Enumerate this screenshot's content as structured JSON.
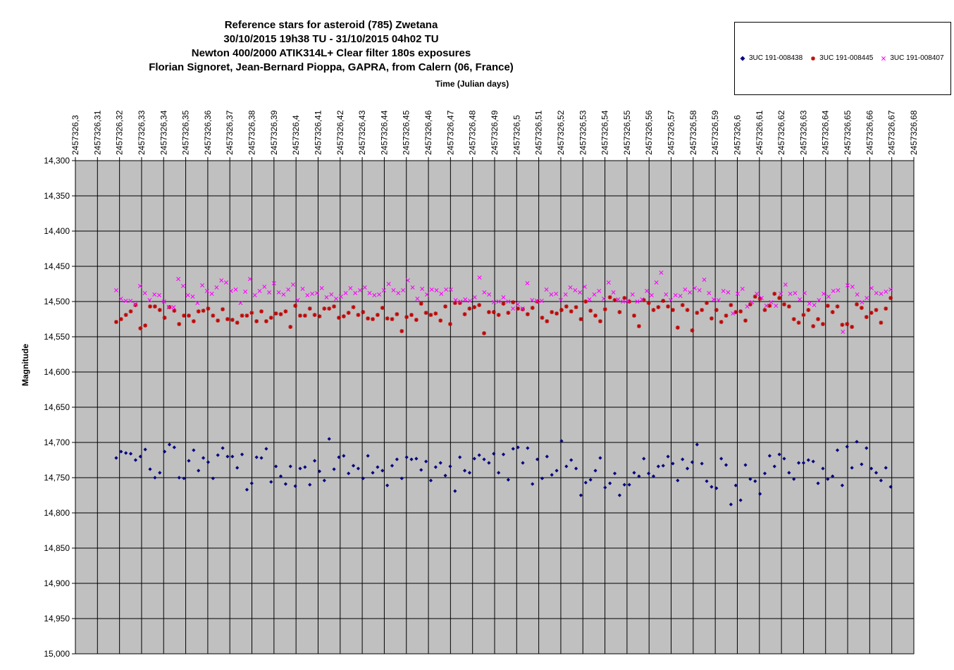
{
  "chart_data": {
    "type": "scatter",
    "title": [
      "Reference stars for asteroid (785) Zwetana",
      "30/10/2015 19h38 TU - 31/10/2015 04h02 TU",
      "Newton 400/2000 ATIK314L+ Clear filter 180s exposures",
      "Florian Signoret, Jean-Bernard Pioppa, GAPRA, from Calern (06, France)"
    ],
    "xlabel": "Time (Julian days)",
    "ylabel": "Magnitude",
    "xlim": [
      2457326.3,
      2457326.68
    ],
    "ylim": [
      14.3,
      15.0
    ],
    "y_inverted": true,
    "x_axis_position": "top",
    "grid": true,
    "plot_background": "#c0c0c0",
    "legend_position": "top-right",
    "x_ticks": [
      "2457326,3",
      "2457326,31",
      "2457326,32",
      "2457326,33",
      "2457326,34",
      "2457326,35",
      "2457326,36",
      "2457326,37",
      "2457326,38",
      "2457326,39",
      "2457326,4",
      "2457326,41",
      "2457326,42",
      "2457326,43",
      "2457326,44",
      "2457326,45",
      "2457326,46",
      "2457326,47",
      "2457326,48",
      "2457326,49",
      "2457326,5",
      "2457326,51",
      "2457326,52",
      "2457326,53",
      "2457326,54",
      "2457326,55",
      "2457326,56",
      "2457326,57",
      "2457326,58",
      "2457326,59",
      "2457326,6",
      "2457326,61",
      "2457326,62",
      "2457326,63",
      "2457326,64",
      "2457326,65",
      "2457326,66",
      "2457326,67",
      "2457326,68"
    ],
    "y_ticks": [
      "14,300",
      "14,350",
      "14,400",
      "14,450",
      "14,500",
      "14,550",
      "14,600",
      "14,650",
      "14,700",
      "14,750",
      "14,800",
      "14,850",
      "14,900",
      "14,950",
      "15,000"
    ],
    "series": [
      {
        "name": "3UC 191-008438",
        "color": "#000080",
        "marker": "diamond",
        "y": [
          14.722,
          14.713,
          14.715,
          14.716,
          14.725,
          14.72,
          14.71,
          14.738,
          14.75,
          14.743,
          14.713,
          14.703,
          14.707,
          14.75,
          14.751,
          14.726,
          14.711,
          14.74,
          14.722,
          14.728,
          14.751,
          14.718,
          14.708,
          14.72,
          14.72,
          14.736,
          14.717,
          14.767,
          14.758,
          14.721,
          14.722,
          14.709,
          14.756,
          14.734,
          14.748,
          14.759,
          14.734,
          14.762,
          14.737,
          14.735,
          14.76,
          14.726,
          14.741,
          14.754,
          14.695,
          14.738,
          14.721,
          14.719,
          14.744,
          14.733,
          14.737,
          14.751,
          14.719,
          14.743,
          14.735,
          14.74,
          14.761,
          14.733,
          14.724,
          14.751,
          14.721,
          14.724,
          14.723,
          14.739,
          14.727,
          14.754,
          14.735,
          14.729,
          14.747,
          14.734,
          14.769,
          14.721,
          14.74,
          14.743,
          14.723,
          14.718,
          14.724,
          14.729,
          14.716,
          14.743,
          14.717,
          14.753,
          14.709,
          14.707,
          14.729,
          14.708,
          14.759,
          14.724,
          14.751,
          14.72,
          14.746,
          14.74,
          14.698,
          14.734,
          14.725,
          14.737,
          14.775,
          14.757,
          14.753,
          14.74,
          14.722,
          14.764,
          14.758,
          14.744,
          14.775,
          14.76,
          14.76,
          14.743,
          14.748,
          14.723,
          14.744,
          14.748,
          14.734,
          14.733,
          14.72,
          14.73,
          14.754,
          14.724,
          14.737,
          14.728,
          14.703,
          14.73,
          14.755,
          14.763,
          14.765,
          14.723,
          14.732,
          14.788,
          14.761,
          14.782,
          14.732,
          14.752,
          14.755,
          14.773,
          14.744,
          14.719,
          14.734,
          14.717,
          14.723,
          14.743,
          14.752,
          14.729,
          14.729,
          14.725,
          14.727,
          14.758,
          14.737,
          14.752,
          14.748,
          14.711,
          14.761,
          14.706,
          14.736,
          14.699,
          14.731,
          14.708,
          14.737,
          14.743,
          14.754,
          14.736,
          14.763
        ]
      },
      {
        "name": "3UC 191-008445",
        "color": "#c00000",
        "marker": "star",
        "y": [
          14.529,
          14.525,
          14.519,
          14.514,
          14.505,
          14.538,
          14.534,
          14.507,
          14.507,
          14.512,
          14.523,
          14.508,
          14.513,
          14.532,
          14.52,
          14.52,
          14.528,
          14.514,
          14.513,
          14.51,
          14.52,
          14.527,
          14.511,
          14.525,
          14.526,
          14.53,
          14.52,
          14.52,
          14.516,
          14.528,
          14.514,
          14.528,
          14.523,
          14.517,
          14.518,
          14.514,
          14.536,
          14.506,
          14.52,
          14.52,
          14.51,
          14.519,
          14.521,
          14.51,
          14.51,
          14.507,
          14.523,
          14.521,
          14.516,
          14.508,
          14.519,
          14.515,
          14.524,
          14.525,
          14.519,
          14.509,
          14.524,
          14.525,
          14.518,
          14.542,
          14.522,
          14.519,
          14.526,
          14.503,
          14.516,
          14.519,
          14.517,
          14.527,
          14.507,
          14.532,
          14.502,
          14.502,
          14.518,
          14.51,
          14.508,
          14.505,
          14.545,
          14.515,
          14.515,
          14.519,
          14.503,
          14.516,
          14.501,
          14.51,
          14.511,
          14.518,
          14.509,
          14.5,
          14.523,
          14.528,
          14.515,
          14.517,
          14.512,
          14.507,
          14.514,
          14.508,
          14.525,
          14.5,
          14.513,
          14.52,
          14.528,
          14.511,
          14.494,
          14.498,
          14.515,
          14.495,
          14.5,
          14.52,
          14.535,
          14.498,
          14.502,
          14.512,
          14.508,
          14.499,
          14.507,
          14.512,
          14.537,
          14.505,
          14.512,
          14.541,
          14.516,
          14.512,
          14.502,
          14.524,
          14.512,
          14.529,
          14.52,
          14.505,
          14.515,
          14.514,
          14.527,
          14.504,
          14.493,
          14.496,
          14.512,
          14.506,
          14.489,
          14.495,
          14.504,
          14.507,
          14.525,
          14.53,
          14.519,
          14.512,
          14.535,
          14.525,
          14.532,
          14.506,
          14.515,
          14.507,
          14.533,
          14.532,
          14.536,
          14.504,
          14.509,
          14.522,
          14.516,
          14.512,
          14.53,
          14.51,
          14.495
        ]
      },
      {
        "name": "3UC 191-008407",
        "color": "#ff00ff",
        "marker": "x",
        "y": [
          14.484,
          14.496,
          14.499,
          14.499,
          14.504,
          14.478,
          14.488,
          14.498,
          14.49,
          14.491,
          14.5,
          14.508,
          14.508,
          14.468,
          14.478,
          14.491,
          14.493,
          14.502,
          14.477,
          14.485,
          14.489,
          14.48,
          14.47,
          14.473,
          14.485,
          14.483,
          14.502,
          14.486,
          14.468,
          14.491,
          14.485,
          14.479,
          14.487,
          14.474,
          14.487,
          14.49,
          14.483,
          14.476,
          14.498,
          14.482,
          14.491,
          14.489,
          14.488,
          14.481,
          14.494,
          14.49,
          14.496,
          14.493,
          14.488,
          14.481,
          14.488,
          14.484,
          14.48,
          14.488,
          14.491,
          14.49,
          14.484,
          14.475,
          14.484,
          14.488,
          14.484,
          14.47,
          14.48,
          14.496,
          14.482,
          14.49,
          14.483,
          14.484,
          14.489,
          14.483,
          14.483,
          14.498,
          14.5,
          14.497,
          14.499,
          14.494,
          14.466,
          14.487,
          14.49,
          14.501,
          14.5,
          14.494,
          14.5,
          14.51,
          14.504,
          14.51,
          14.474,
          14.498,
          14.499,
          14.499,
          14.483,
          14.49,
          14.489,
          14.498,
          14.49,
          14.48,
          14.484,
          14.487,
          14.479,
          14.497,
          14.49,
          14.485,
          14.496,
          14.473,
          14.487,
          14.497,
          14.5,
          14.499,
          14.49,
          14.5,
          14.497,
          14.485,
          14.491,
          14.473,
          14.459,
          14.49,
          14.498,
          14.491,
          14.492,
          14.483,
          14.487,
          14.481,
          14.484,
          14.469,
          14.488,
          14.497,
          14.498,
          14.485,
          14.487,
          14.517,
          14.489,
          14.482,
          14.507,
          14.501,
          14.489,
          14.495,
          14.506,
          14.501,
          14.506,
          14.489,
          14.476,
          14.489,
          14.488,
          14.497,
          14.488,
          14.503,
          14.505,
          14.498,
          14.489,
          14.493,
          14.485,
          14.484,
          14.543,
          14.477,
          14.479,
          14.49,
          14.501,
          14.495,
          14.481,
          14.488,
          14.489,
          14.486,
          14.483
        ]
      }
    ]
  }
}
